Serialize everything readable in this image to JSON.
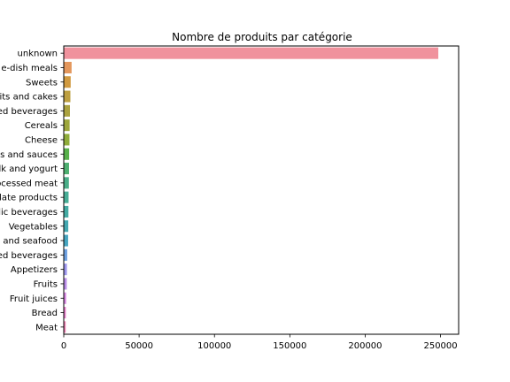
{
  "chart_data": {
    "type": "bar",
    "orientation": "horizontal",
    "title": "Nombre de produits par catégorie",
    "xlabel": "",
    "ylabel": "",
    "xlim": [
      0,
      262000
    ],
    "xticks": [
      0,
      50000,
      100000,
      150000,
      200000,
      250000
    ],
    "grid": false,
    "categories": [
      "unknown",
      "One-dish meals",
      "Sweets",
      "Biscuits and cakes",
      "Sweetened beverages",
      "Cereals",
      "Cheese",
      "Dressings and sauces",
      "Milk and yogurt",
      "Processed meat",
      "Chocolate products",
      "Alcoholic beverages",
      "Vegetables",
      "Fish and seafood",
      "Unsweetened beverages",
      "Appetizers",
      "Fruits",
      "Fruit juices",
      "Bread",
      "Meat"
    ],
    "visible_labels": [
      "unknown",
      "e-dish meals",
      "Sweets",
      "its and cakes",
      "ed beverages",
      "Cereals",
      "Cheese",
      "s and sauces",
      "lk and yogurt",
      "ocessed meat",
      "late products",
      "lic beverages",
      "Vegetables",
      "and seafood",
      "ed beverages",
      "Appetizers",
      "Fruits",
      "Fruit juices",
      "Bread",
      "Meat"
    ],
    "values": [
      248500,
      5200,
      4600,
      4400,
      4100,
      3900,
      3800,
      3600,
      3500,
      3400,
      3200,
      3100,
      3000,
      2900,
      2300,
      2100,
      2000,
      1600,
      1400,
      1300
    ],
    "colors": [
      "#f0929d",
      "#e4975c",
      "#d19a40",
      "#bd9f40",
      "#aba23f",
      "#9ea73c",
      "#8fac3a",
      "#57b04a",
      "#4eaf71",
      "#4aae88",
      "#47ad96",
      "#45aba3",
      "#44a8b1",
      "#46a5c0",
      "#6c9fe0",
      "#9b95ec",
      "#b98be8",
      "#d483df",
      "#e67dca",
      "#ee80b2"
    ]
  }
}
